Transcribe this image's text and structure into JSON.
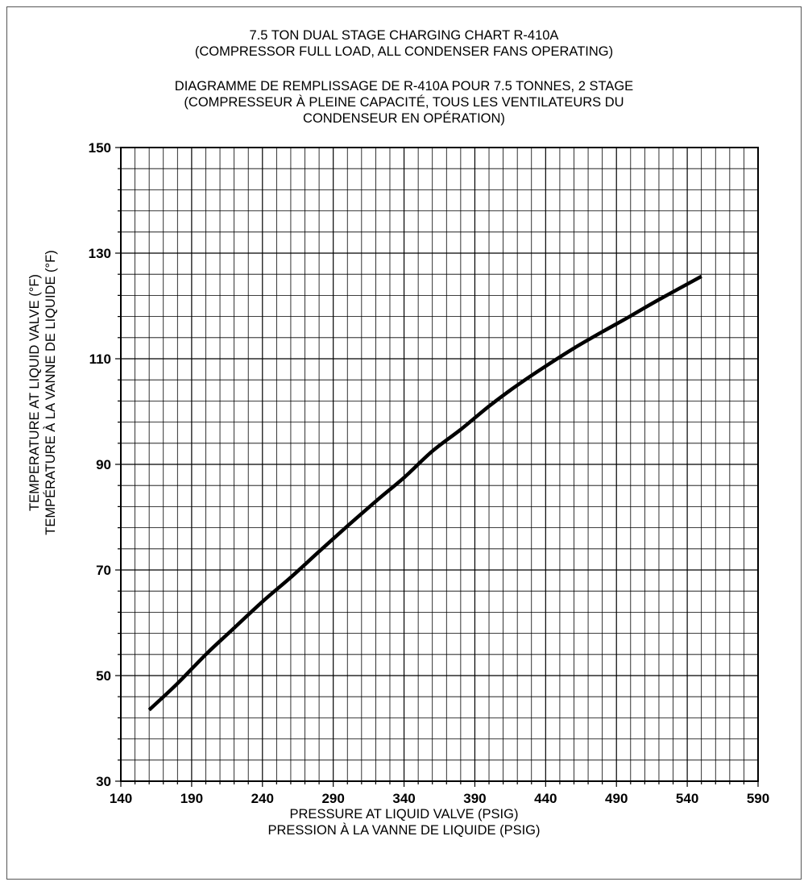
{
  "chart_data": {
    "type": "line",
    "title_lines": [
      "7.5 TON DUAL STAGE CHARGING CHART R-410A",
      "(COMPRESSOR FULL LOAD, ALL CONDENSER FANS OPERATING)",
      "DIAGRAMME DE REMPLISSAGE DE R-410A POUR 7.5 TONNES, 2 STAGE",
      "(COMPRESSEUR À PLEINE CAPACITÉ, TOUS LES VENTILATEURS DU",
      "CONDENSEUR EN OPÉRATION)"
    ],
    "xlabel_lines": [
      "PRESSURE AT LIQUID VALVE (PSIG)",
      "PRESSION À LA VANNE DE LIQUIDE (PSIG)"
    ],
    "ylabel_lines": [
      "TEMPERATURE AT LIQUID VALVE (°F)",
      "TEMPÉRATURE À LA VANNE DE LIQUIDE (°F)"
    ],
    "xlim": [
      140,
      590
    ],
    "ylim": [
      30,
      150
    ],
    "x_ticks": [
      "140",
      "190",
      "240",
      "290",
      "340",
      "390",
      "440",
      "490",
      "540",
      "590"
    ],
    "y_ticks": [
      "30",
      "50",
      "70",
      "90",
      "110",
      "130",
      "150"
    ],
    "x_minor_step": 10,
    "y_minor_step": 4,
    "grid": true,
    "series": [
      {
        "x": [
          160,
          180,
          200,
          220,
          240,
          260,
          280,
          300,
          320,
          340,
          360,
          380,
          400,
          420,
          440,
          460,
          480,
          500,
          520,
          550
        ],
        "y": [
          43.5,
          48.5,
          54.0,
          59.0,
          64.0,
          68.6,
          73.5,
          78.3,
          83.0,
          87.5,
          92.5,
          96.6,
          101.0,
          105.0,
          108.6,
          112.0,
          115.1,
          118.1,
          121.2,
          125.6
        ]
      }
    ],
    "line_color": "#000000"
  }
}
